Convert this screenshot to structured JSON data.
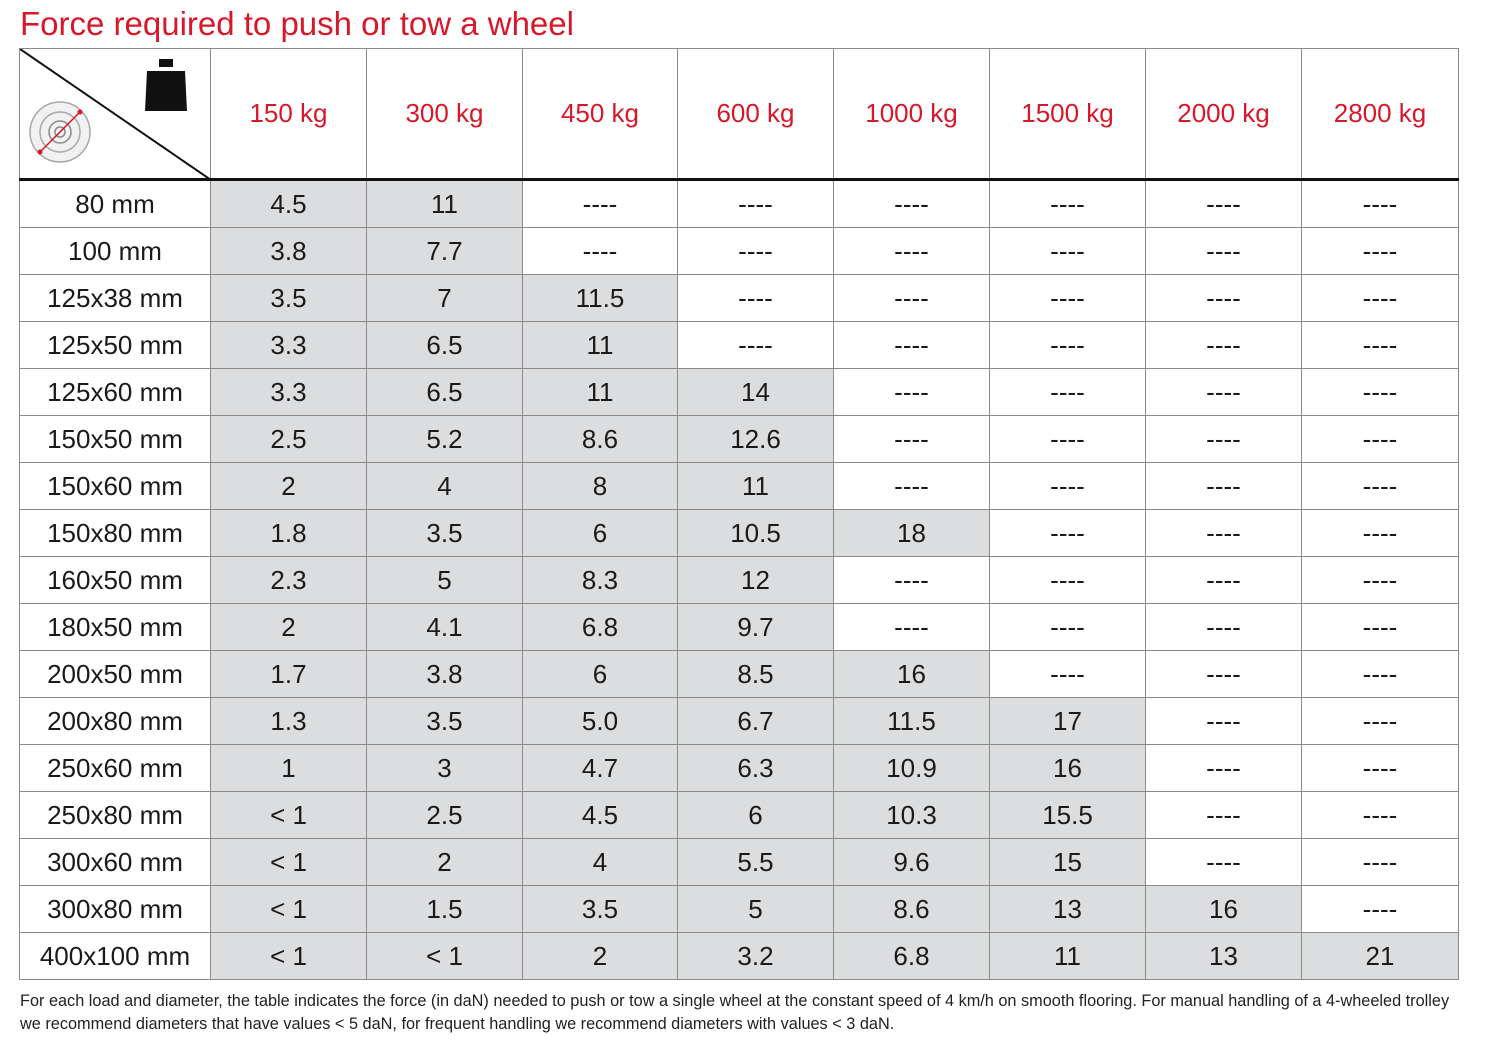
{
  "title": "Force required to push or tow a wheel",
  "icons": {
    "weight": "weight-icon",
    "wheel": "wheel-icon"
  },
  "colors": {
    "title": "#d7182a",
    "header": "#d7182a",
    "shaded_cell": "#dcdddf"
  },
  "table": {
    "columns": [
      "150 kg",
      "300 kg",
      "450 kg",
      "600 kg",
      "1000 kg",
      "1500 kg",
      "2000 kg",
      "2800 kg"
    ],
    "rows": [
      {
        "diameter": "80 mm",
        "values": [
          "4.5",
          "11",
          "----",
          "----",
          "----",
          "----",
          "----",
          "----"
        ],
        "shaded": [
          true,
          true,
          false,
          false,
          false,
          false,
          false,
          false
        ]
      },
      {
        "diameter": "100 mm",
        "values": [
          "3.8",
          "7.7",
          "----",
          "----",
          "----",
          "----",
          "----",
          "----"
        ],
        "shaded": [
          true,
          true,
          false,
          false,
          false,
          false,
          false,
          false
        ]
      },
      {
        "diameter": "125x38 mm",
        "values": [
          "3.5",
          "7",
          "11.5",
          "----",
          "----",
          "----",
          "----",
          "----"
        ],
        "shaded": [
          true,
          true,
          true,
          false,
          false,
          false,
          false,
          false
        ]
      },
      {
        "diameter": "125x50 mm",
        "values": [
          "3.3",
          "6.5",
          "11",
          "----",
          "----",
          "----",
          "----",
          "----"
        ],
        "shaded": [
          true,
          true,
          true,
          false,
          false,
          false,
          false,
          false
        ]
      },
      {
        "diameter": "125x60 mm",
        "values": [
          "3.3",
          "6.5",
          "11",
          "14",
          "----",
          "----",
          "----",
          "----"
        ],
        "shaded": [
          true,
          true,
          true,
          true,
          false,
          false,
          false,
          false
        ]
      },
      {
        "diameter": "150x50 mm",
        "values": [
          "2.5",
          "5.2",
          "8.6",
          "12.6",
          "----",
          "----",
          "----",
          "----"
        ],
        "shaded": [
          true,
          true,
          true,
          true,
          false,
          false,
          false,
          false
        ]
      },
      {
        "diameter": "150x60 mm",
        "values": [
          "2",
          "4",
          "8",
          "11",
          "----",
          "----",
          "----",
          "----"
        ],
        "shaded": [
          true,
          true,
          true,
          true,
          false,
          false,
          false,
          false
        ]
      },
      {
        "diameter": "150x80 mm",
        "values": [
          "1.8",
          "3.5",
          "6",
          "10.5",
          "18",
          "----",
          "----",
          "----"
        ],
        "shaded": [
          true,
          true,
          true,
          true,
          true,
          false,
          false,
          false
        ]
      },
      {
        "diameter": "160x50 mm",
        "values": [
          "2.3",
          "5",
          "8.3",
          "12",
          "----",
          "----",
          "----",
          "----"
        ],
        "shaded": [
          true,
          true,
          true,
          true,
          false,
          false,
          false,
          false
        ]
      },
      {
        "diameter": "180x50 mm",
        "values": [
          "2",
          "4.1",
          "6.8",
          "9.7",
          "----",
          "----",
          "----",
          "----"
        ],
        "shaded": [
          true,
          true,
          true,
          true,
          false,
          false,
          false,
          false
        ]
      },
      {
        "diameter": "200x50 mm",
        "values": [
          "1.7",
          "3.8",
          "6",
          "8.5",
          "16",
          "----",
          "----",
          "----"
        ],
        "shaded": [
          true,
          true,
          true,
          true,
          true,
          false,
          false,
          false
        ]
      },
      {
        "diameter": "200x80 mm",
        "values": [
          "1.3",
          "3.5",
          "5.0",
          "6.7",
          "11.5",
          "17",
          "----",
          "----"
        ],
        "shaded": [
          true,
          true,
          true,
          true,
          true,
          true,
          false,
          false
        ]
      },
      {
        "diameter": "250x60 mm",
        "values": [
          "1",
          "3",
          "4.7",
          "6.3",
          "10.9",
          "16",
          "----",
          "----"
        ],
        "shaded": [
          true,
          true,
          true,
          true,
          true,
          true,
          false,
          false
        ]
      },
      {
        "diameter": "250x80 mm",
        "values": [
          "< 1",
          "2.5",
          "4.5",
          "6",
          "10.3",
          "15.5",
          "----",
          "----"
        ],
        "shaded": [
          true,
          true,
          true,
          true,
          true,
          true,
          false,
          false
        ]
      },
      {
        "diameter": "300x60 mm",
        "values": [
          "< 1",
          "2",
          "4",
          "5.5",
          "9.6",
          "15",
          "----",
          "----"
        ],
        "shaded": [
          true,
          true,
          true,
          true,
          true,
          true,
          false,
          false
        ]
      },
      {
        "diameter": "300x80 mm",
        "values": [
          "< 1",
          "1.5",
          "3.5",
          "5",
          "8.6",
          "13",
          "16",
          "----"
        ],
        "shaded": [
          true,
          true,
          true,
          true,
          true,
          true,
          true,
          false
        ]
      },
      {
        "diameter": "400x100 mm",
        "values": [
          "< 1",
          "< 1",
          "2",
          "3.2",
          "6.8",
          "11",
          "13",
          "21"
        ],
        "shaded": [
          true,
          true,
          true,
          true,
          true,
          true,
          true,
          true
        ]
      }
    ]
  },
  "footnote": "For each load and diameter, the table indicates the force (in daN) needed to push or tow a single wheel at the constant speed of 4 km/h on smooth flooring. For manual handling of a 4-wheeled trolley we recommend diameters that have values < 5 daN, for frequent handling we recommend diameters with values < 3 daN."
}
